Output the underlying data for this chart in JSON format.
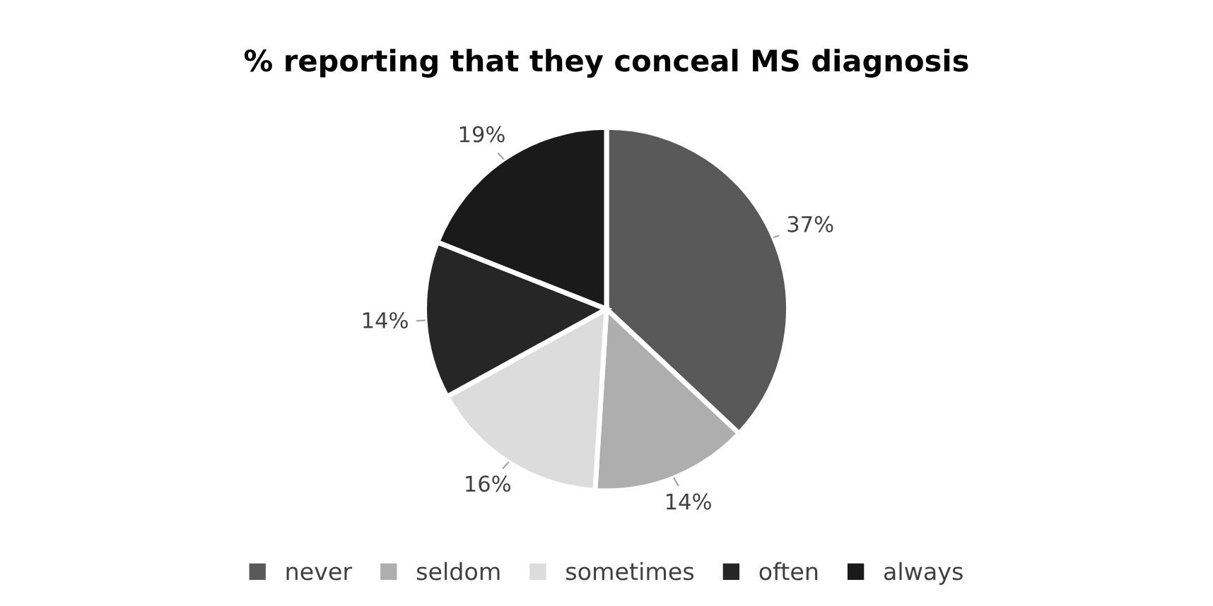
{
  "chart_data": {
    "type": "pie",
    "title": "% reporting that they conceal MS diagnosis",
    "categories": [
      "never",
      "seldom",
      "sometimes",
      "often",
      "always"
    ],
    "values": [
      37,
      14,
      16,
      14,
      19
    ],
    "value_labels": [
      "37%",
      "14%",
      "16%",
      "14%",
      "19%"
    ],
    "colors": [
      "#595959",
      "#aeaeae",
      "#dcdcdc",
      "#262626",
      "#1a1a1a"
    ],
    "legend": "bottom"
  }
}
